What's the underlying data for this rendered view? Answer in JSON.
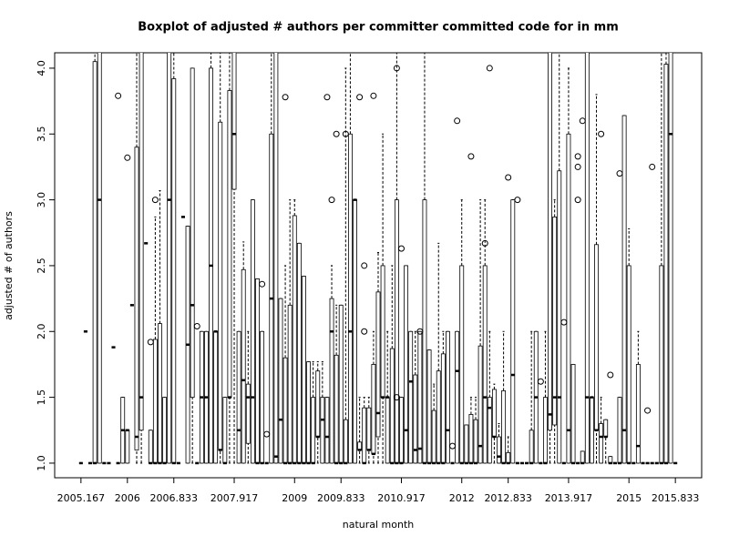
{
  "chart_data": {
    "type": "boxplot",
    "title": "Boxplot of adjusted # authors per committer committed code for in mm",
    "x_label": "natural month",
    "y_label": "adjusted # of authors",
    "ylim": [
      0.889,
      4.117
    ],
    "yticks": [
      {
        "value": 1,
        "label": "1.0"
      },
      1.5,
      {
        "value": 2,
        "label": "2.0"
      },
      2.5,
      {
        "value": 3,
        "label": "3.0"
      },
      3.5,
      {
        "value": 4,
        "label": "4.0"
      }
    ],
    "color": "#000000",
    "categories": [
      "2005.167",
      null,
      null,
      null,
      null,
      null,
      null,
      null,
      null,
      null,
      "2006",
      null,
      null,
      null,
      null,
      null,
      null,
      null,
      null,
      null,
      "2006.833",
      null,
      null,
      null,
      null,
      null,
      null,
      null,
      null,
      null,
      null,
      null,
      null,
      "2007.917",
      null,
      null,
      null,
      null,
      null,
      null,
      null,
      null,
      null,
      null,
      null,
      null,
      "2009",
      null,
      null,
      null,
      null,
      null,
      null,
      null,
      null,
      null,
      "2009.833",
      null,
      null,
      null,
      null,
      null,
      null,
      null,
      null,
      null,
      null,
      null,
      null,
      "2010.917",
      null,
      null,
      null,
      null,
      null,
      null,
      null,
      null,
      null,
      null,
      null,
      null,
      "2012",
      null,
      null,
      null,
      null,
      null,
      null,
      null,
      null,
      null,
      "2012.833",
      null,
      null,
      null,
      null,
      null,
      null,
      null,
      null,
      null,
      null,
      null,
      null,
      "2013.917",
      null,
      null,
      null,
      null,
      null,
      null,
      null,
      null,
      null,
      null,
      null,
      null,
      "2015",
      null,
      null,
      null,
      null,
      null,
      null,
      null,
      null,
      null,
      "2015.833"
    ],
    "stats": [
      [
        1,
        1,
        1,
        1,
        1
      ],
      [
        2,
        2,
        2,
        2,
        2
      ],
      [
        1,
        1,
        1,
        1,
        1
      ],
      [
        1,
        1,
        1,
        4.05,
        5
      ],
      [
        1,
        1,
        3,
        4.5,
        6
      ],
      [
        1,
        1,
        1,
        1,
        1
      ],
      [
        1,
        1,
        1,
        1,
        1
      ],
      [
        1.88,
        1.88,
        1.88,
        1.88,
        1.88
      ],
      [
        1,
        1,
        1,
        1,
        1
      ],
      [
        1,
        1,
        1.25,
        1.5,
        1.5
      ],
      [
        1,
        1,
        1.25,
        1.25,
        1.25
      ],
      [
        2.2,
        2.2,
        2.2,
        2.2,
        2.2
      ],
      [
        1,
        1.1,
        1.2,
        3.4,
        5
      ],
      [
        1,
        1.25,
        1.5,
        4.5,
        5
      ],
      [
        2.67,
        2.67,
        2.67,
        2.67,
        2.67
      ],
      [
        1,
        1,
        1,
        1.25,
        1.25
      ],
      [
        1,
        1,
        1,
        1.94,
        2.87
      ],
      [
        1,
        1,
        1,
        2.06,
        3.07
      ],
      [
        1,
        1,
        1,
        1.5,
        1.5
      ],
      [
        1,
        1,
        3,
        4.5,
        5
      ],
      [
        1,
        1,
        1,
        3.92,
        5
      ],
      [
        1,
        1,
        1,
        1,
        1
      ],
      [
        2.87,
        2.87,
        2.87,
        2.87,
        2.87
      ],
      [
        1,
        1,
        1.9,
        2.8,
        2.8
      ],
      [
        1,
        1.5,
        2.2,
        4,
        4
      ],
      [
        1,
        1,
        1,
        1,
        1
      ],
      [
        1,
        1,
        1.5,
        2,
        2
      ],
      [
        1,
        1,
        1.5,
        2,
        2
      ],
      [
        1,
        1,
        2.5,
        4,
        4.5
      ],
      [
        1,
        1,
        2,
        2,
        2
      ],
      [
        1,
        1.1,
        1.1,
        3.59,
        4.5
      ],
      [
        1,
        1,
        1,
        1.5,
        1.5
      ],
      [
        1,
        1.5,
        1.5,
        3.83,
        5
      ],
      [
        1,
        3.08,
        3.5,
        5,
        6
      ],
      [
        1,
        1,
        1.25,
        2,
        2
      ],
      [
        1,
        1,
        1.63,
        2.47,
        2.68
      ],
      [
        1,
        1.15,
        1.5,
        1.6,
        2
      ],
      [
        1,
        1,
        1.5,
        3,
        3
      ],
      [
        1,
        1,
        1,
        2.4,
        2.4
      ],
      [
        1,
        1,
        1,
        2,
        2
      ],
      [
        1,
        1,
        1,
        1,
        1
      ],
      [
        1,
        1,
        2.25,
        3.5,
        5
      ],
      [
        1,
        1,
        1.05,
        5,
        6
      ],
      [
        1,
        1,
        1.33,
        2.25,
        2.25
      ],
      [
        1,
        1,
        1,
        1.8,
        2.5
      ],
      [
        1,
        1,
        1,
        2.2,
        3
      ],
      [
        1,
        1,
        1,
        2.88,
        3
      ],
      [
        1,
        1,
        1,
        2.67,
        2.67
      ],
      [
        1,
        1,
        1,
        2.42,
        2.42
      ],
      [
        1,
        1,
        1,
        1.77,
        1.77
      ],
      [
        1,
        1,
        1,
        1.5,
        1.77
      ],
      [
        1,
        1.2,
        1.2,
        1.7,
        1.77
      ],
      [
        1,
        1,
        1.33,
        1.5,
        1.77
      ],
      [
        1,
        1,
        1.2,
        1.5,
        1.5
      ],
      [
        1,
        1,
        2,
        2.25,
        2.5
      ],
      [
        1,
        1,
        1,
        1.82,
        2.2
      ],
      [
        1,
        1,
        1,
        2.2,
        2.2
      ],
      [
        1,
        1,
        1,
        1.33,
        4
      ],
      [
        1,
        1,
        2,
        3.5,
        4.5
      ],
      [
        1,
        1,
        3,
        3,
        3
      ],
      [
        1,
        1.1,
        1.1,
        1.16,
        1.5
      ],
      [
        1,
        1,
        1,
        1.42,
        1.5
      ],
      [
        1,
        1.1,
        1.1,
        1.42,
        1.5
      ],
      [
        1,
        1.07,
        1.07,
        1.75,
        2
      ],
      [
        1,
        1.2,
        1.38,
        2.3,
        2.6
      ],
      [
        1,
        1.5,
        1.5,
        2.5,
        3.5
      ],
      [
        1,
        1,
        1.5,
        1.5,
        2
      ],
      [
        1,
        1,
        1,
        1.87,
        2.5
      ],
      [
        1,
        1,
        1,
        3,
        4.5
      ],
      [
        1,
        1,
        1,
        1.5,
        1.5
      ],
      [
        1,
        1,
        1.25,
        2.5,
        2.5
      ],
      [
        1,
        1,
        1.62,
        2,
        2
      ],
      [
        1,
        1,
        1.1,
        1.67,
        2
      ],
      [
        1,
        1,
        1.11,
        2,
        2
      ],
      [
        1,
        1,
        1,
        3,
        5
      ],
      [
        1,
        1,
        1,
        1.86,
        1.86
      ],
      [
        1,
        1,
        1,
        1.4,
        1.6
      ],
      [
        1,
        1,
        1,
        1.7,
        2.67
      ],
      [
        1,
        1,
        1,
        1.83,
        2
      ],
      [
        1,
        1,
        1.25,
        2,
        2
      ],
      [
        1,
        1,
        1,
        1,
        1
      ],
      [
        1,
        1,
        1.7,
        2,
        2
      ],
      [
        1,
        1,
        1,
        2.5,
        3
      ],
      [
        1,
        1,
        1,
        1.29,
        1.29
      ],
      [
        1,
        1,
        1,
        1.37,
        1.5
      ],
      [
        1,
        1,
        1,
        1.33,
        1.5
      ],
      [
        1,
        1,
        1.13,
        1.89,
        3
      ],
      [
        1,
        1,
        1.5,
        2.5,
        3
      ],
      [
        1,
        1,
        1.42,
        1.5,
        2
      ],
      [
        1,
        1.2,
        1.2,
        1.56,
        1.6
      ],
      [
        1,
        1,
        1.05,
        1.2,
        1.3
      ],
      [
        1,
        1,
        1,
        1.55,
        2
      ],
      [
        1,
        1,
        1,
        1.08,
        1.2
      ],
      [
        1,
        1,
        1.67,
        3,
        3
      ],
      [
        1,
        1,
        1,
        1,
        1
      ],
      [
        1,
        1,
        1,
        1,
        1
      ],
      [
        1,
        1,
        1,
        1,
        1
      ],
      [
        1,
        1,
        1,
        1.25,
        2
      ],
      [
        1,
        1,
        1.5,
        2,
        2
      ],
      [
        1,
        1,
        1,
        1,
        1
      ],
      [
        1,
        1,
        1,
        1.5,
        2
      ],
      [
        1,
        1.25,
        1.37,
        5,
        6
      ],
      [
        1,
        1.29,
        1.5,
        2.87,
        3
      ],
      [
        1,
        1,
        1.5,
        3.22,
        4.5
      ],
      [
        1,
        1,
        1,
        1,
        1
      ],
      [
        1,
        1,
        1.25,
        3.5,
        4
      ],
      [
        1,
        1,
        1,
        1.75,
        1.75
      ],
      [
        1,
        1,
        1,
        1,
        1
      ],
      [
        1,
        1,
        1,
        1.09,
        1.09
      ],
      [
        1,
        1,
        1.5,
        5,
        6
      ],
      [
        1,
        1,
        1.5,
        1.5,
        1.5
      ],
      [
        1,
        1.25,
        1.25,
        2.66,
        3.8
      ],
      [
        1,
        1,
        1.2,
        1.3,
        1.5
      ],
      [
        1,
        1.2,
        1.2,
        1.33,
        1.33
      ],
      [
        1,
        1,
        1,
        1.05,
        1.05
      ],
      [
        1,
        1,
        1,
        1,
        1
      ],
      [
        1,
        1,
        1,
        1.5,
        1.5
      ],
      [
        1,
        1,
        1.25,
        3.64,
        3.64
      ],
      [
        1,
        1,
        1,
        2.5,
        2.78
      ],
      [
        1,
        1,
        1,
        1,
        1
      ],
      [
        1,
        1,
        1.13,
        1.75,
        2
      ],
      [
        1,
        1,
        1,
        1,
        1
      ],
      [
        1,
        1,
        1,
        1,
        1
      ],
      [
        1,
        1,
        1,
        1,
        1
      ],
      [
        1,
        1,
        1,
        1,
        1
      ],
      [
        1,
        1,
        1,
        2.5,
        4.5
      ],
      [
        1,
        1,
        1,
        4.03,
        5
      ],
      [
        1,
        1,
        3.5,
        5,
        6
      ],
      [
        1,
        1,
        1,
        1,
        1
      ]
    ],
    "outliers": [
      [],
      [],
      [],
      [],
      [],
      [],
      [],
      [],
      [
        3.79
      ],
      [],
      [
        3.32
      ],
      [],
      [],
      [],
      [],
      [
        1.92
      ],
      [
        3.0
      ],
      [],
      [],
      [],
      [],
      [],
      [],
      [],
      [],
      [
        2.04
      ],
      [],
      [],
      [],
      [],
      [],
      [],
      [],
      [],
      [],
      [],
      [],
      [],
      [],
      [
        2.36
      ],
      [
        1.22
      ],
      [],
      [],
      [],
      [
        3.78
      ],
      [],
      [],
      [],
      [],
      [],
      [],
      [],
      [],
      [
        3.78
      ],
      [
        3.0
      ],
      [
        3.5
      ],
      [],
      [
        3.5
      ],
      [],
      [],
      [
        3.78
      ],
      [
        2.5,
        2.0
      ],
      [],
      [
        3.79
      ],
      [],
      [],
      [],
      [],
      [
        4.0,
        1.5
      ],
      [
        2.63
      ],
      [],
      [],
      [],
      [
        2.0
      ],
      [],
      [],
      [],
      [],
      [],
      [],
      [
        1.13
      ],
      [
        3.6
      ],
      [],
      [],
      [
        3.33
      ],
      [],
      [],
      [
        2.67
      ],
      [
        4.0
      ],
      [],
      [],
      [],
      [
        3.17
      ],
      [],
      [
        3.0
      ],
      [],
      [],
      [],
      [],
      [
        1.62
      ],
      [],
      [],
      [],
      [],
      [
        2.07
      ],
      [],
      [],
      [
        3.33,
        3.25,
        3.0
      ],
      [
        3.6
      ],
      [],
      [],
      [],
      [
        3.5
      ],
      [],
      [
        1.67
      ],
      [],
      [
        3.2
      ],
      [],
      [],
      [],
      [],
      [],
      [
        1.4
      ],
      [
        3.25
      ],
      [],
      [],
      [],
      [],
      []
    ]
  }
}
